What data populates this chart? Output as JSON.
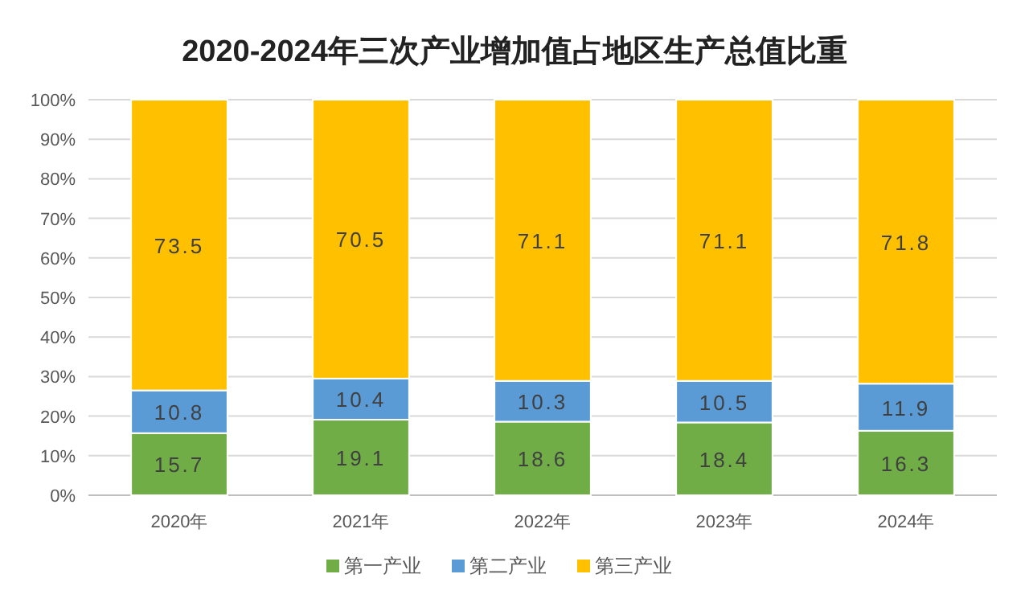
{
  "chart_data": {
    "type": "bar",
    "title": "2020-2024年三次产业增加值占地区生产总值比重",
    "categories": [
      "2020年",
      "2021年",
      "2022年",
      "2023年",
      "2024年"
    ],
    "series": [
      {
        "name": "第一产业",
        "color": "#70ad47",
        "values": [
          15.7,
          19.1,
          18.6,
          18.4,
          16.3
        ]
      },
      {
        "name": "第二产业",
        "color": "#5b9bd5",
        "values": [
          10.8,
          10.4,
          10.3,
          10.5,
          11.9
        ]
      },
      {
        "name": "第三产业",
        "color": "#ffc000",
        "values": [
          73.5,
          70.5,
          71.1,
          71.1,
          71.8
        ]
      }
    ],
    "stacked": true,
    "ylim": [
      0,
      100
    ],
    "yticks": [
      {
        "value": 0,
        "label": "0%"
      },
      {
        "value": 10,
        "label": "10%"
      },
      {
        "value": 20,
        "label": "20%"
      },
      {
        "value": 30,
        "label": "30%"
      },
      {
        "value": 40,
        "label": "40%"
      },
      {
        "value": 50,
        "label": "50%"
      },
      {
        "value": 60,
        "label": "60%"
      },
      {
        "value": 70,
        "label": "70%"
      },
      {
        "value": 80,
        "label": "80%"
      },
      {
        "value": 90,
        "label": "90%"
      },
      {
        "value": 100,
        "label": "100%"
      }
    ],
    "data_labels": true,
    "grid": "y",
    "legend": "bottom"
  }
}
